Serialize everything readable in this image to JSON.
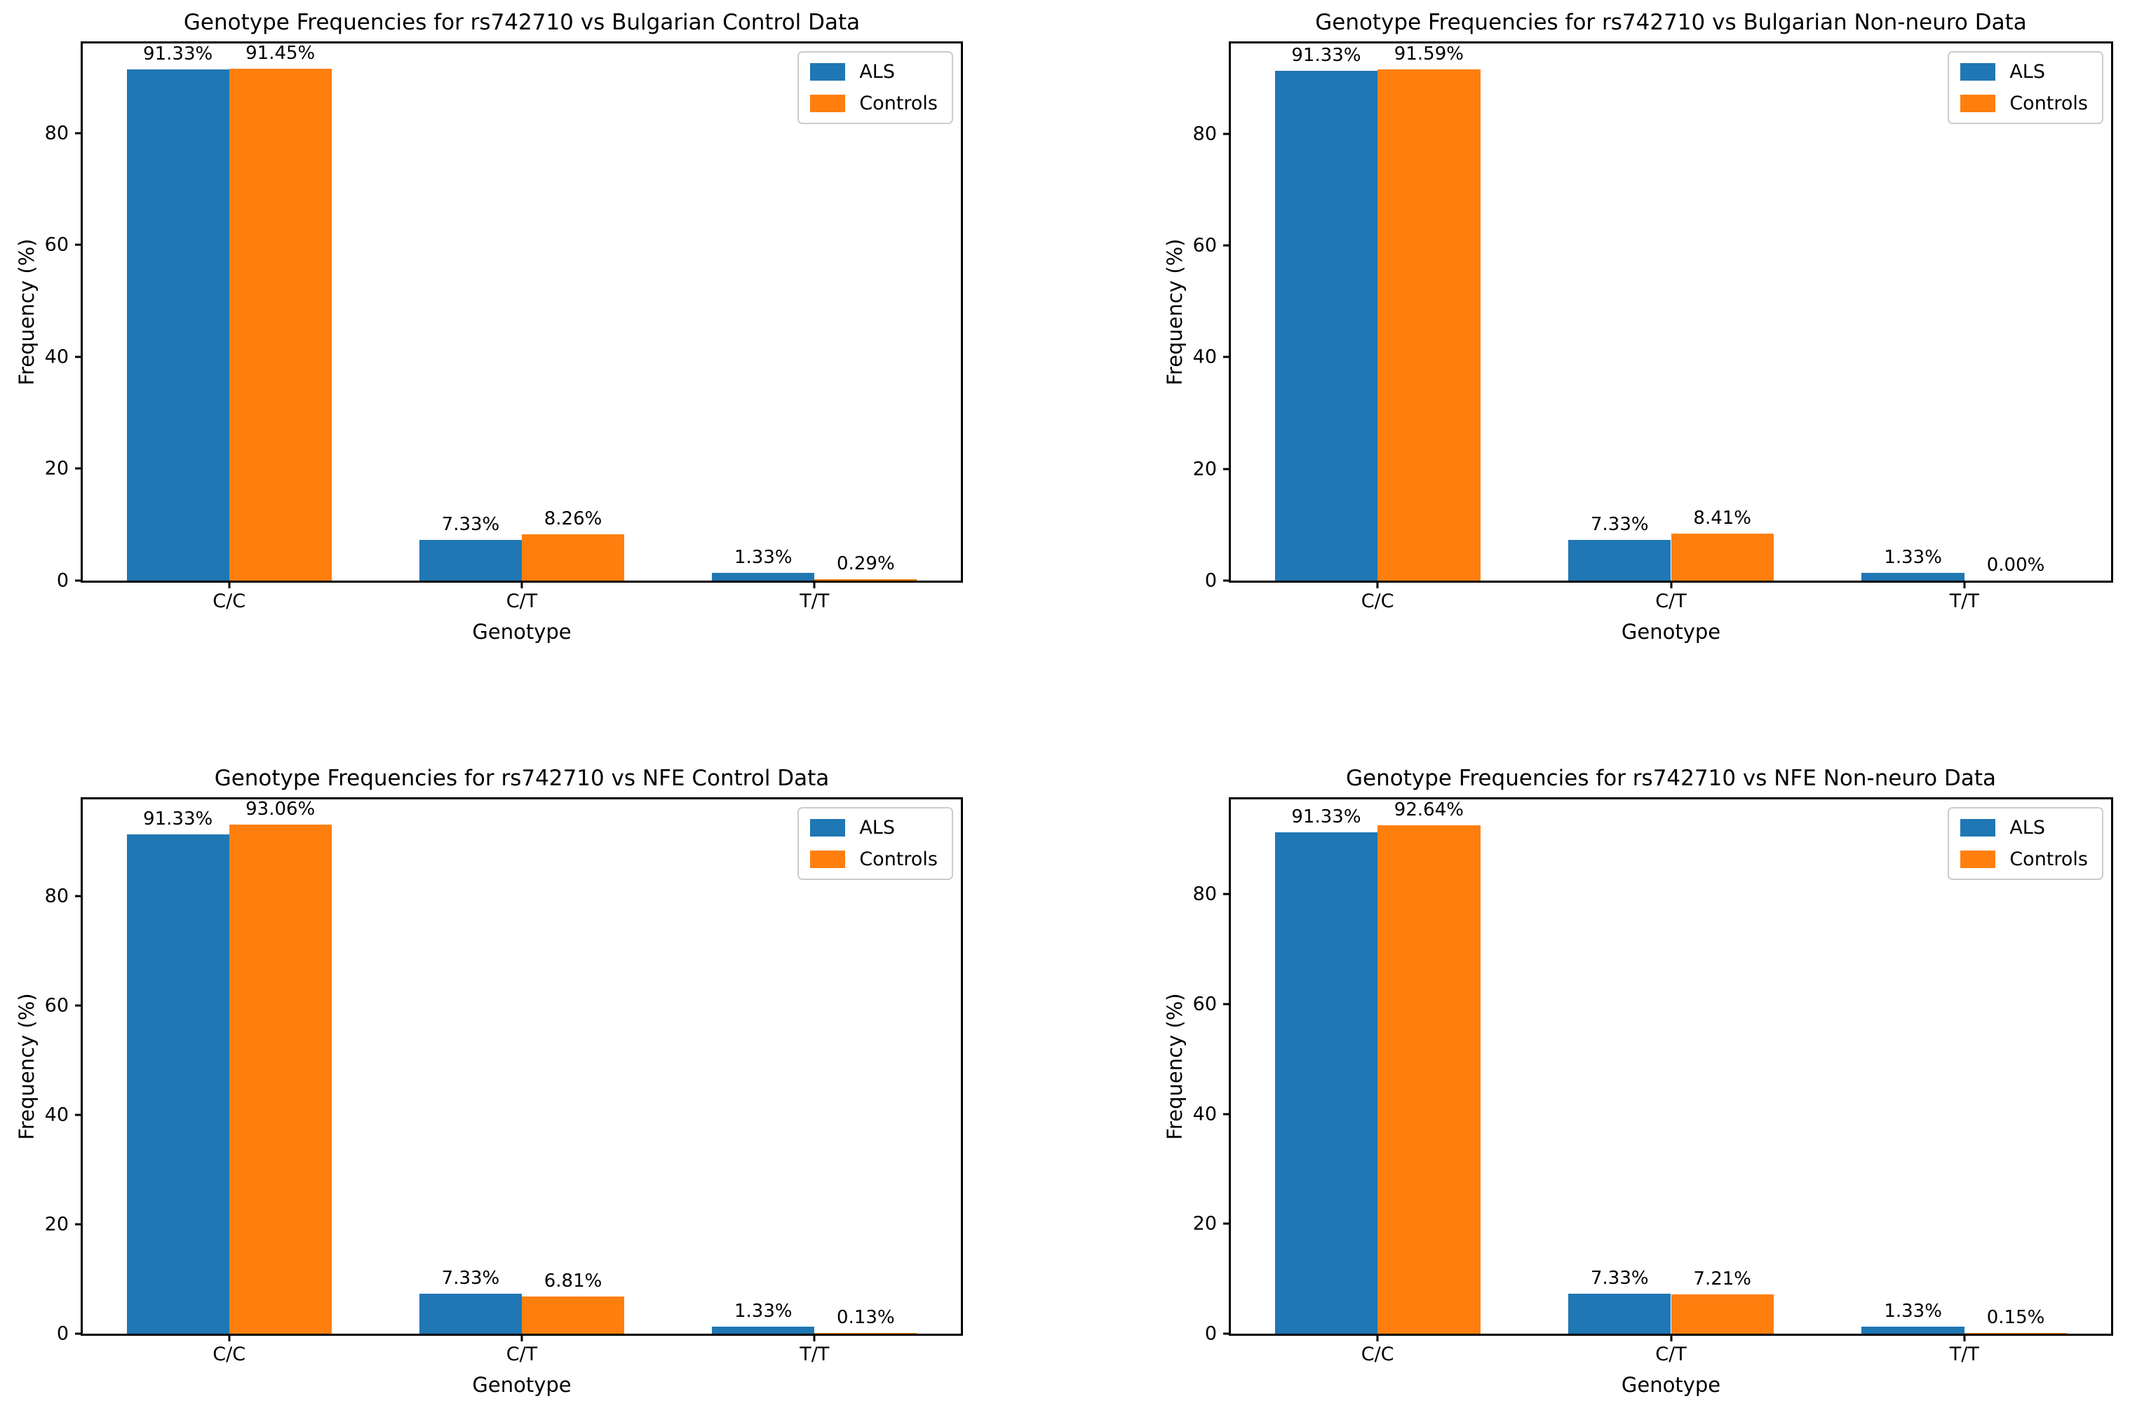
{
  "figure": {
    "ylabel": "Frequency (%)",
    "xlabel": "Genotype",
    "series_colors": {
      "ALS": "#1f77b4",
      "Controls": "#ff7f0e"
    }
  },
  "chart_data": [
    {
      "type": "bar",
      "title": "Genotype Frequencies for rs742710 vs Bulgarian Control Data",
      "xlabel": "Genotype",
      "ylabel": "Frequency (%)",
      "categories": [
        "C/C",
        "C/T",
        "T/T"
      ],
      "yticks": [
        0,
        20,
        40,
        60,
        80
      ],
      "ylim": [
        0,
        96.0
      ],
      "grid": false,
      "legend_position": "upper right",
      "series": [
        {
          "name": "ALS",
          "color": "#1f77b4",
          "values": [
            91.33,
            7.33,
            1.33
          ],
          "labels": [
            "91.33%",
            "7.33%",
            "1.33%"
          ]
        },
        {
          "name": "Controls",
          "color": "#ff7f0e",
          "values": [
            91.45,
            8.26,
            0.29
          ],
          "labels": [
            "91.45%",
            "8.26%",
            "0.29%"
          ]
        }
      ]
    },
    {
      "type": "bar",
      "title": "Genotype Frequencies for rs742710 vs Bulgarian Non-neuro Data",
      "xlabel": "Genotype",
      "ylabel": "Frequency (%)",
      "categories": [
        "C/C",
        "C/T",
        "T/T"
      ],
      "yticks": [
        0,
        20,
        40,
        60,
        80
      ],
      "ylim": [
        0,
        96.2
      ],
      "grid": false,
      "legend_position": "upper right",
      "series": [
        {
          "name": "ALS",
          "color": "#1f77b4",
          "values": [
            91.33,
            7.33,
            1.33
          ],
          "labels": [
            "91.33%",
            "7.33%",
            "1.33%"
          ]
        },
        {
          "name": "Controls",
          "color": "#ff7f0e",
          "values": [
            91.59,
            8.41,
            0.0
          ],
          "labels": [
            "91.59%",
            "8.41%",
            "0.00%"
          ]
        }
      ]
    },
    {
      "type": "bar",
      "title": "Genotype Frequencies for rs742710 vs NFE Control Data",
      "xlabel": "Genotype",
      "ylabel": "Frequency (%)",
      "categories": [
        "C/C",
        "C/T",
        "T/T"
      ],
      "yticks": [
        0,
        20,
        40,
        60,
        80
      ],
      "ylim": [
        0,
        97.7
      ],
      "grid": false,
      "legend_position": "upper right",
      "series": [
        {
          "name": "ALS",
          "color": "#1f77b4",
          "values": [
            91.33,
            7.33,
            1.33
          ],
          "labels": [
            "91.33%",
            "7.33%",
            "1.33%"
          ]
        },
        {
          "name": "Controls",
          "color": "#ff7f0e",
          "values": [
            93.06,
            6.81,
            0.13
          ],
          "labels": [
            "93.06%",
            "6.81%",
            "0.13%"
          ]
        }
      ]
    },
    {
      "type": "bar",
      "title": "Genotype Frequencies for rs742710 vs NFE Non-neuro Data",
      "xlabel": "Genotype",
      "ylabel": "Frequency (%)",
      "categories": [
        "C/C",
        "C/T",
        "T/T"
      ],
      "yticks": [
        0,
        20,
        40,
        60,
        80
      ],
      "ylim": [
        0,
        97.3
      ],
      "grid": false,
      "legend_position": "upper right",
      "series": [
        {
          "name": "ALS",
          "color": "#1f77b4",
          "values": [
            91.33,
            7.33,
            1.33
          ],
          "labels": [
            "91.33%",
            "7.33%",
            "1.33%"
          ]
        },
        {
          "name": "Controls",
          "color": "#ff7f0e",
          "values": [
            92.64,
            7.21,
            0.15
          ],
          "labels": [
            "92.64%",
            "7.21%",
            "0.15%"
          ]
        }
      ]
    }
  ]
}
